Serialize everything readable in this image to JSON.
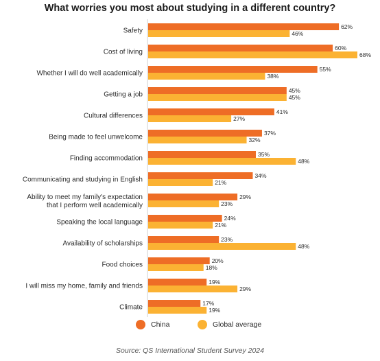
{
  "title": "What worries you most about studying in a different country?",
  "source": "Source: QS International Student Survey 2024",
  "colors": {
    "china": "#ee6d26",
    "global": "#fbb233",
    "axis": "#cfcfcf"
  },
  "legend": [
    {
      "label": "China",
      "color": "#ee6d26"
    },
    {
      "label": "Global average",
      "color": "#fbb233"
    }
  ],
  "chart_data": {
    "type": "bar",
    "orientation": "horizontal",
    "title": "What worries you most about studying in a different country?",
    "categories": [
      [
        "Safety"
      ],
      [
        "Cost of living"
      ],
      [
        "Whether I will do well academically"
      ],
      [
        "Getting a job"
      ],
      [
        "Cultural differences"
      ],
      [
        "Being made to feel unwelcome"
      ],
      [
        "Finding accommodation"
      ],
      [
        "Communicating and studying in English"
      ],
      [
        "Ability to meet my family's expectation",
        "that I perform well academically"
      ],
      [
        "Speaking the local language"
      ],
      [
        "Availability of scholarships"
      ],
      [
        "Food choices"
      ],
      [
        "I will miss my home, family and friends"
      ],
      [
        "Climate"
      ]
    ],
    "series": [
      {
        "name": "China",
        "color": "#ee6d26",
        "values": [
          62,
          60,
          55,
          45,
          41,
          37,
          35,
          34,
          29,
          24,
          23,
          20,
          19,
          17
        ]
      },
      {
        "name": "Global average",
        "color": "#fbb233",
        "values": [
          46,
          68,
          38,
          45,
          27,
          32,
          48,
          21,
          23,
          21,
          48,
          18,
          29,
          19
        ]
      }
    ],
    "value_suffix": "%",
    "xlim": [
      0,
      68
    ],
    "legend_position": "bottom",
    "grid": false
  }
}
